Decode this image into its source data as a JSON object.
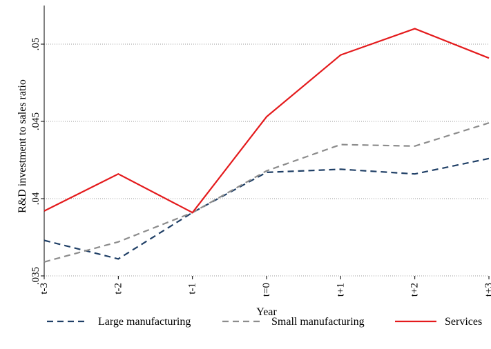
{
  "chart_data": {
    "type": "line",
    "title": "",
    "xlabel": "Year",
    "ylabel": "R&D investment to sales ratio",
    "categories": [
      "t-3",
      "t-2",
      "t-1",
      "t=0",
      "t+1",
      "t+2",
      "t+3"
    ],
    "ylim": [
      0.035,
      0.0525
    ],
    "yticks": [
      0.035,
      0.04,
      0.045,
      0.05
    ],
    "ytick_labels": [
      ".035",
      ".04",
      ".045",
      ".05"
    ],
    "grid": "horizontal dotted",
    "legend_position": "bottom",
    "series": [
      {
        "name": "Large manufacturing",
        "values": [
          0.0373,
          0.0361,
          0.0391,
          0.0417,
          0.0419,
          0.0416,
          0.0426
        ],
        "color": "#1f3f66",
        "style": "dashed"
      },
      {
        "name": "Small manufacturing",
        "values": [
          0.0359,
          0.0372,
          0.0391,
          0.0418,
          0.0435,
          0.0434,
          0.0449
        ],
        "color": "#8c8c8c",
        "style": "dashed"
      },
      {
        "name": "Services",
        "values": [
          0.0392,
          0.0416,
          0.0391,
          0.0453,
          0.0493,
          0.051,
          0.0491
        ],
        "color": "#e41a1c",
        "style": "solid"
      }
    ]
  }
}
